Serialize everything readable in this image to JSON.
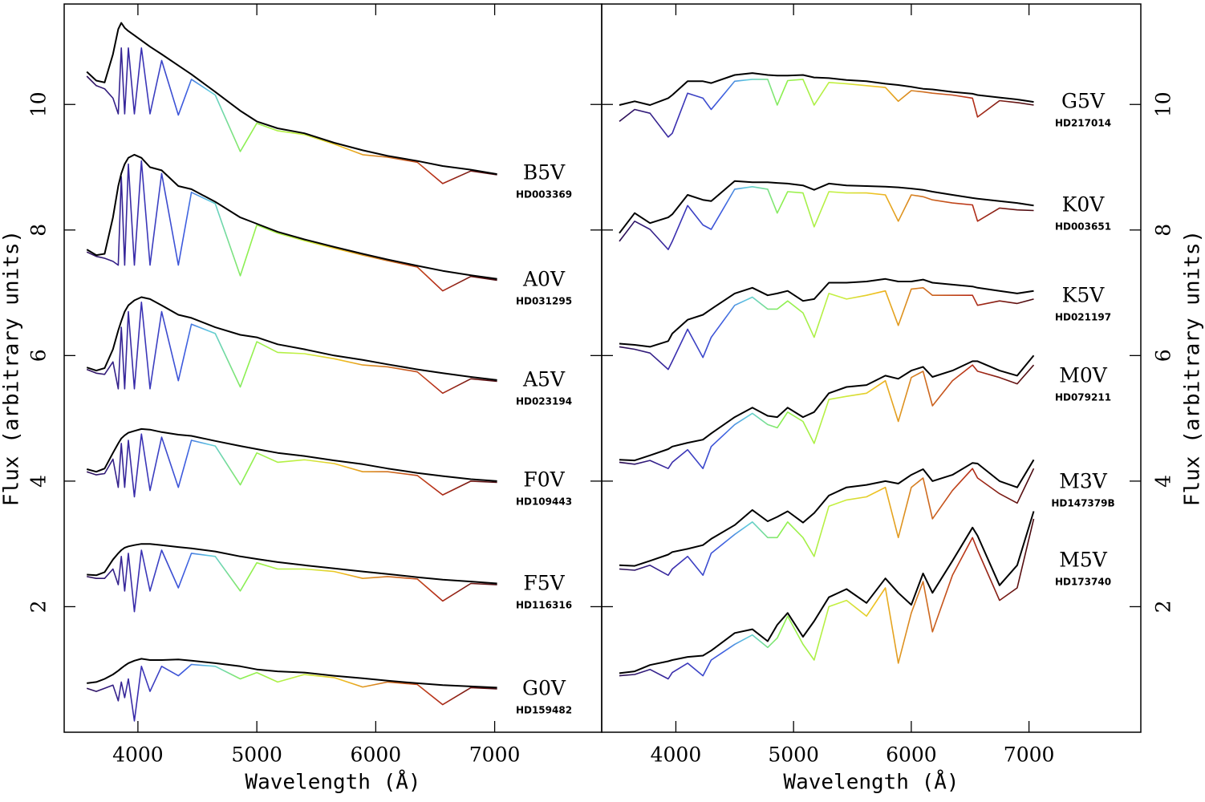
{
  "chart_data": [
    {
      "type": "line",
      "xlabel": "Wavelength (Å)",
      "ylabel": "Flux (arbitrary units)",
      "xlim": [
        3380,
        7900
      ],
      "ylim": [
        0,
        11.6
      ],
      "xticks": [
        4000,
        5000,
        6000,
        7000
      ],
      "yticks": [
        2,
        4,
        6,
        8,
        10
      ],
      "continuum_color": "#000000",
      "color_stops": [
        {
          "wavelength": 3500,
          "color": "#2a0a4a"
        },
        {
          "wavelength": 4000,
          "color": "#3b2fb0"
        },
        {
          "wavelength": 4400,
          "color": "#3d5ce0"
        },
        {
          "wavelength": 4600,
          "color": "#5ec8e0"
        },
        {
          "wavelength": 4900,
          "color": "#8cf050"
        },
        {
          "wavelength": 5400,
          "color": "#c8f040"
        },
        {
          "wavelength": 5700,
          "color": "#f0c020"
        },
        {
          "wavelength": 6100,
          "color": "#d07020"
        },
        {
          "wavelength": 6500,
          "color": "#b83018"
        },
        {
          "wavelength": 7000,
          "color": "#4a0a10"
        }
      ],
      "x": [
        3570,
        3650,
        3720,
        3790,
        3835,
        3860,
        3889,
        3920,
        3970,
        4030,
        4102,
        4200,
        4340,
        4450,
        4650,
        4861,
        5000,
        5175,
        5400,
        5650,
        5890,
        6100,
        6350,
        6563,
        6800,
        7020
      ],
      "series": [
        {
          "name": "B5V",
          "id": "HD003369",
          "values": [
            10.45,
            10.3,
            10.25,
            10.1,
            9.85,
            10.9,
            9.85,
            10.9,
            9.85,
            10.9,
            9.85,
            10.7,
            9.83,
            10.4,
            10.15,
            9.25,
            9.7,
            9.58,
            9.52,
            9.37,
            9.2,
            9.16,
            9.08,
            8.74,
            8.94,
            8.88
          ],
          "continuum": [
            10.52,
            10.38,
            10.35,
            10.8,
            11.2,
            11.3,
            11.22,
            11.17,
            11.1,
            11.02,
            10.92,
            10.8,
            10.62,
            10.48,
            10.2,
            9.9,
            9.73,
            9.62,
            9.54,
            9.39,
            9.27,
            9.18,
            9.1,
            9.02,
            8.96,
            8.89
          ]
        },
        {
          "name": "A0V",
          "id": "HD031295",
          "values": [
            7.65,
            7.58,
            7.55,
            7.5,
            7.44,
            8.85,
            7.44,
            9.05,
            7.44,
            9.1,
            7.44,
            8.9,
            7.44,
            8.6,
            8.42,
            7.27,
            8.08,
            7.95,
            7.83,
            7.71,
            7.6,
            7.51,
            7.41,
            7.03,
            7.26,
            7.2
          ],
          "continuum": [
            7.69,
            7.6,
            7.62,
            8.2,
            8.7,
            8.9,
            9.05,
            9.15,
            9.2,
            9.15,
            9.0,
            8.95,
            8.7,
            8.65,
            8.45,
            8.2,
            8.1,
            7.97,
            7.85,
            7.73,
            7.62,
            7.53,
            7.43,
            7.35,
            7.28,
            7.22
          ]
        },
        {
          "name": "A5V",
          "id": "HD023194",
          "values": [
            5.78,
            5.72,
            5.7,
            5.9,
            5.47,
            6.45,
            5.47,
            6.7,
            5.47,
            6.85,
            5.47,
            6.7,
            5.6,
            6.5,
            6.35,
            5.5,
            6.22,
            6.05,
            6.03,
            5.95,
            5.85,
            5.82,
            5.74,
            5.4,
            5.63,
            5.59
          ],
          "continuum": [
            5.81,
            5.76,
            5.8,
            6.1,
            6.4,
            6.55,
            6.7,
            6.8,
            6.88,
            6.93,
            6.9,
            6.8,
            6.65,
            6.6,
            6.45,
            6.33,
            6.29,
            6.18,
            6.1,
            6.0,
            5.93,
            5.86,
            5.78,
            5.72,
            5.66,
            5.61
          ]
        },
        {
          "name": "F0V",
          "id": "HD109443",
          "values": [
            4.15,
            4.1,
            4.12,
            4.35,
            3.9,
            4.6,
            3.9,
            4.65,
            3.75,
            4.75,
            3.85,
            4.7,
            3.9,
            4.65,
            4.56,
            3.94,
            4.45,
            4.3,
            4.34,
            4.28,
            4.15,
            4.15,
            4.09,
            3.78,
            4.0,
            3.98
          ],
          "continuum": [
            4.19,
            4.15,
            4.2,
            4.45,
            4.6,
            4.68,
            4.73,
            4.77,
            4.8,
            4.83,
            4.82,
            4.78,
            4.74,
            4.72,
            4.64,
            4.56,
            4.51,
            4.45,
            4.4,
            4.33,
            4.27,
            4.2,
            4.13,
            4.08,
            4.03,
            4.0
          ]
        },
        {
          "name": "F5V",
          "id": "HD116316",
          "values": [
            2.48,
            2.45,
            2.45,
            2.6,
            2.35,
            2.8,
            2.25,
            2.85,
            1.92,
            2.9,
            2.25,
            2.9,
            2.3,
            2.85,
            2.8,
            2.25,
            2.7,
            2.6,
            2.6,
            2.56,
            2.45,
            2.48,
            2.44,
            2.09,
            2.37,
            2.35
          ],
          "continuum": [
            2.51,
            2.5,
            2.55,
            2.75,
            2.85,
            2.9,
            2.94,
            2.96,
            2.98,
            3.0,
            3.0,
            2.98,
            2.95,
            2.93,
            2.88,
            2.8,
            2.76,
            2.71,
            2.66,
            2.61,
            2.56,
            2.52,
            2.47,
            2.43,
            2.4,
            2.37
          ]
        },
        {
          "name": "G0V",
          "id": "HD159482",
          "values": [
            0.7,
            0.65,
            0.7,
            0.75,
            0.5,
            0.8,
            0.55,
            0.85,
            0.18,
            1.05,
            0.65,
            1.05,
            0.9,
            1.08,
            1.05,
            0.85,
            0.95,
            0.8,
            0.92,
            0.87,
            0.72,
            0.8,
            0.76,
            0.44,
            0.71,
            0.69
          ],
          "continuum": [
            0.78,
            0.8,
            0.85,
            0.92,
            0.98,
            1.02,
            1.06,
            1.1,
            1.14,
            1.17,
            1.15,
            1.15,
            1.16,
            1.14,
            1.1,
            1.05,
            1.0,
            0.97,
            0.95,
            0.9,
            0.86,
            0.82,
            0.78,
            0.75,
            0.73,
            0.71
          ]
        }
      ]
    },
    {
      "type": "line",
      "xlabel": "Wavelength (Å)",
      "ylabel": "Flux (arbitrary units)",
      "xlim": [
        3370,
        7950
      ],
      "ylim": [
        0,
        11.6
      ],
      "xticks": [
        4000,
        5000,
        6000,
        7000
      ],
      "yticks": [
        2,
        4,
        6,
        8,
        10
      ],
      "continuum_color": "#000000",
      "color_stops": [
        {
          "wavelength": 3500,
          "color": "#2a0a4a"
        },
        {
          "wavelength": 4000,
          "color": "#3b2fb0"
        },
        {
          "wavelength": 4400,
          "color": "#3d5ce0"
        },
        {
          "wavelength": 4600,
          "color": "#5ec8e0"
        },
        {
          "wavelength": 4900,
          "color": "#8cf050"
        },
        {
          "wavelength": 5400,
          "color": "#c8f040"
        },
        {
          "wavelength": 5700,
          "color": "#f0c020"
        },
        {
          "wavelength": 6100,
          "color": "#d07020"
        },
        {
          "wavelength": 6500,
          "color": "#b83018"
        },
        {
          "wavelength": 7000,
          "color": "#4a0a10"
        }
      ],
      "x": [
        3520,
        3650,
        3780,
        3935,
        3970,
        4100,
        4230,
        4300,
        4500,
        4650,
        4780,
        4861,
        4950,
        5080,
        5175,
        5300,
        5450,
        5620,
        5780,
        5890,
        6000,
        6100,
        6180,
        6350,
        6520,
        6563,
        6750,
        6900,
        7040
      ],
      "series": [
        {
          "name": "G5V",
          "id": "HD217014",
          "values": [
            9.73,
            9.92,
            9.86,
            9.48,
            9.54,
            10.18,
            10.1,
            9.92,
            10.37,
            10.4,
            10.4,
            9.99,
            10.38,
            10.4,
            9.99,
            10.35,
            10.33,
            10.3,
            10.27,
            10.05,
            10.22,
            10.2,
            10.18,
            10.15,
            10.1,
            9.8,
            10.06,
            10.03,
            9.99
          ],
          "continuum": [
            9.99,
            10.05,
            9.99,
            10.1,
            10.15,
            10.37,
            10.37,
            10.34,
            10.47,
            10.5,
            10.47,
            10.46,
            10.46,
            10.47,
            10.43,
            10.42,
            10.39,
            10.37,
            10.33,
            10.31,
            10.28,
            10.25,
            10.24,
            10.2,
            10.17,
            10.15,
            10.11,
            10.08,
            10.04
          ]
        },
        {
          "name": "K0V",
          "id": "HD003651",
          "values": [
            7.82,
            8.14,
            8.01,
            7.69,
            7.82,
            8.39,
            8.08,
            8.01,
            8.65,
            8.69,
            8.65,
            8.27,
            8.61,
            8.59,
            8.05,
            8.61,
            8.59,
            8.59,
            8.56,
            8.14,
            8.56,
            8.53,
            8.48,
            8.43,
            8.4,
            8.14,
            8.35,
            8.32,
            8.31
          ],
          "continuum": [
            7.95,
            8.27,
            8.11,
            8.2,
            8.25,
            8.56,
            8.48,
            8.46,
            8.78,
            8.76,
            8.76,
            8.75,
            8.74,
            8.71,
            8.64,
            8.74,
            8.71,
            8.7,
            8.69,
            8.68,
            8.66,
            8.64,
            8.61,
            8.56,
            8.51,
            8.5,
            8.46,
            8.43,
            8.39
          ]
        },
        {
          "name": "K5V",
          "id": "HD021197",
          "values": [
            6.14,
            6.1,
            6.04,
            5.78,
            5.91,
            6.42,
            5.97,
            6.29,
            6.8,
            6.93,
            6.74,
            6.74,
            6.87,
            6.68,
            6.29,
            6.99,
            6.9,
            6.96,
            7.03,
            6.48,
            7.06,
            7.08,
            6.96,
            6.96,
            6.96,
            6.8,
            6.87,
            6.83,
            6.9
          ],
          "continuum": [
            6.19,
            6.17,
            6.14,
            6.23,
            6.35,
            6.57,
            6.65,
            6.74,
            6.99,
            7.08,
            6.96,
            6.99,
            7.03,
            6.87,
            6.9,
            7.16,
            7.16,
            7.18,
            7.22,
            7.18,
            7.18,
            7.21,
            7.16,
            7.13,
            7.1,
            7.08,
            7.03,
            6.99,
            7.03
          ]
        },
        {
          "name": "M0V",
          "id": "HD079211",
          "values": [
            4.3,
            4.27,
            4.33,
            4.2,
            4.3,
            4.5,
            4.2,
            4.55,
            4.9,
            5.08,
            4.9,
            4.85,
            5.1,
            4.95,
            4.6,
            5.3,
            5.35,
            5.4,
            5.6,
            4.95,
            5.65,
            5.75,
            5.2,
            5.6,
            5.85,
            5.75,
            5.65,
            5.55,
            5.85
          ],
          "continuum": [
            4.34,
            4.33,
            4.41,
            4.51,
            4.55,
            4.61,
            4.66,
            4.76,
            5.02,
            5.17,
            5.04,
            5.02,
            5.17,
            5.02,
            5.1,
            5.4,
            5.5,
            5.53,
            5.68,
            5.63,
            5.76,
            5.82,
            5.66,
            5.76,
            5.91,
            5.91,
            5.76,
            5.68,
            6.0
          ]
        },
        {
          "name": "M3V",
          "id": "HD147379B",
          "values": [
            2.6,
            2.58,
            2.66,
            2.5,
            2.6,
            2.8,
            2.5,
            2.85,
            3.15,
            3.35,
            3.1,
            3.1,
            3.35,
            3.1,
            2.8,
            3.6,
            3.7,
            3.75,
            3.9,
            3.1,
            3.9,
            4.05,
            3.4,
            3.85,
            4.2,
            4.05,
            3.8,
            3.65,
            4.2
          ],
          "continuum": [
            2.66,
            2.65,
            2.73,
            2.83,
            2.87,
            2.92,
            2.98,
            3.08,
            3.3,
            3.54,
            3.36,
            3.43,
            3.52,
            3.34,
            3.49,
            3.77,
            3.9,
            3.94,
            4.0,
            3.96,
            4.1,
            4.19,
            4.0,
            4.1,
            4.29,
            4.28,
            4.0,
            3.9,
            4.34
          ]
        },
        {
          "name": "M5V",
          "id": "HD173740",
          "values": [
            0.9,
            0.92,
            1.0,
            0.85,
            0.95,
            1.1,
            0.9,
            1.15,
            1.4,
            1.55,
            1.35,
            1.5,
            1.85,
            1.4,
            1.15,
            2.0,
            2.1,
            1.85,
            2.3,
            1.1,
            1.9,
            2.4,
            1.6,
            2.5,
            3.1,
            2.9,
            2.1,
            2.3,
            3.4
          ],
          "continuum": [
            0.94,
            0.97,
            1.07,
            1.13,
            1.15,
            1.2,
            1.22,
            1.3,
            1.58,
            1.64,
            1.45,
            1.71,
            1.9,
            1.52,
            1.77,
            2.15,
            2.28,
            2.06,
            2.45,
            2.22,
            2.03,
            2.53,
            2.22,
            2.73,
            3.26,
            3.13,
            2.34,
            2.66,
            3.52
          ]
        }
      ]
    }
  ]
}
